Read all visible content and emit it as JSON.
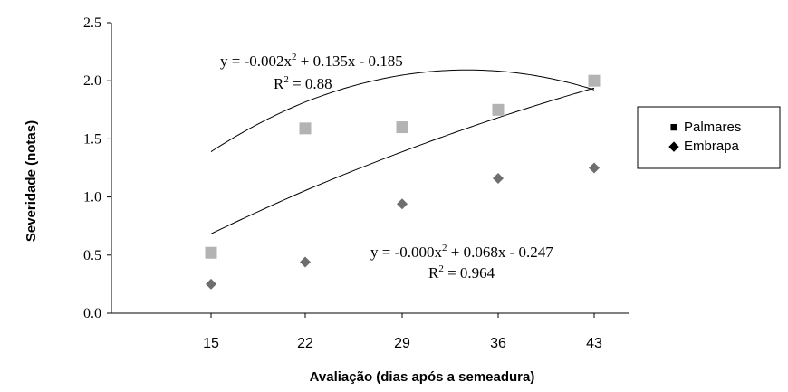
{
  "chart_data": {
    "type": "scatter",
    "xlabel": "Avaliação (dias após a semeadura)",
    "ylabel": "Severidade (notas)",
    "x": [
      15,
      22,
      29,
      36,
      43
    ],
    "x_ticks": [
      "15",
      "22",
      "29",
      "36",
      "43"
    ],
    "ylim": [
      0,
      2.5
    ],
    "y_ticks": [
      "0.0",
      "0.5",
      "1.0",
      "1.5",
      "2.0",
      "2.5"
    ],
    "grid": false,
    "legend_position": "right",
    "series": [
      {
        "name": "Palmares",
        "marker": "square",
        "color": "#b3b3b3",
        "values": [
          0.52,
          1.59,
          1.6,
          1.75,
          2.0
        ],
        "fit": {
          "a": -0.002,
          "b": 0.135,
          "c": -0.185,
          "equation_prefix": "y = -0.002x",
          "equation_suffix": " + 0.135x - 0.185",
          "r2_prefix": "R",
          "r2_suffix": " = 0.88"
        }
      },
      {
        "name": "Embrapa",
        "marker": "diamond",
        "color": "#6e6e6e",
        "values": [
          0.25,
          0.44,
          0.94,
          1.16,
          1.25
        ],
        "fit": {
          "a": -0.0004,
          "b": 0.068,
          "c": -0.247,
          "equation_prefix": "y = -0.000x",
          "equation_suffix": " + 0.068x - 0.247",
          "r2_prefix": "R",
          "r2_suffix": " = 0.964"
        }
      }
    ],
    "legend": [
      {
        "label": "Palmares",
        "symbol": "■"
      },
      {
        "label": "Embrapa",
        "symbol": "◆"
      }
    ]
  }
}
